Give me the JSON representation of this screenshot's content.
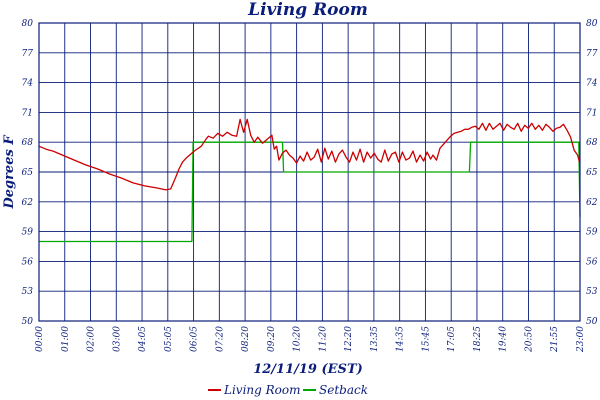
{
  "chart_data": {
    "type": "line",
    "title": "Living Room",
    "xlabel": "12/11/19 (EST)",
    "ylabel": "Degrees F",
    "ylim": [
      50,
      80
    ],
    "yticks": [
      "80",
      "77",
      "74",
      "71",
      "68",
      "65",
      "62",
      "59",
      "56",
      "53",
      "50"
    ],
    "x_tick_labels": [
      "00:00",
      "01:00",
      "02:00",
      "03:00",
      "04:05",
      "05:05",
      "06:05",
      "07:20",
      "08:20",
      "09:20",
      "10:20",
      "11:20",
      "12:20",
      "13:35",
      "14:35",
      "15:45",
      "17:05",
      "18:25",
      "19:40",
      "20:50",
      "21:55",
      "23:00"
    ],
    "grid": true,
    "legend": "bottom",
    "series": [
      {
        "name": "Living Room",
        "color": "#cc0000",
        "x": [
          0,
          0.3,
          0.6,
          1.0,
          1.5,
          2.0,
          2.5,
          3.0,
          3.5,
          4.0,
          4.5,
          5.0,
          5.4,
          5.6,
          5.8,
          5.95,
          6.1,
          6.3,
          6.6,
          6.9,
          7.1,
          7.2,
          7.4,
          7.6,
          7.8,
          8.0,
          8.2,
          8.4,
          8.55,
          8.7,
          8.85,
          9.0,
          9.15,
          9.3,
          9.5,
          9.7,
          9.9,
          10.0,
          10.1,
          10.2,
          10.35,
          10.5,
          10.65,
          10.8,
          10.95,
          11.1,
          11.25,
          11.4,
          11.55,
          11.7,
          11.85,
          12.0,
          12.15,
          12.3,
          12.45,
          12.6,
          12.75,
          12.9,
          13.05,
          13.2,
          13.35,
          13.5,
          13.65,
          13.8,
          13.95,
          14.1,
          14.25,
          14.4,
          14.55,
          14.7,
          14.85,
          15.0,
          15.15,
          15.3,
          15.45,
          15.6,
          15.75,
          15.9,
          16.05,
          16.2,
          16.35,
          16.5,
          16.65,
          16.75,
          16.9,
          17.05,
          17.2,
          17.35,
          17.5,
          17.65,
          17.8,
          17.95,
          18.1,
          18.25,
          18.4,
          18.55,
          18.7,
          18.85,
          19.0,
          19.15,
          19.3,
          19.45,
          19.6,
          19.75,
          19.9,
          20.05,
          20.2,
          20.35,
          20.5,
          20.65,
          20.8,
          20.95,
          21.1,
          21.25,
          21.4,
          21.55,
          21.7,
          21.85,
          22.0,
          22.15,
          22.3,
          22.45,
          22.6,
          22.75,
          22.9,
          23.0
        ],
        "values": [
          67.6,
          67.3,
          67.1,
          66.7,
          66.2,
          65.7,
          65.3,
          64.8,
          64.4,
          63.9,
          63.6,
          63.4,
          63.2,
          63.3,
          64.4,
          65.3,
          66.0,
          66.5,
          67.1,
          67.6,
          68.3,
          68.6,
          68.4,
          68.9,
          68.6,
          69.0,
          68.7,
          68.6,
          70.3,
          69.0,
          70.3,
          68.7,
          68.0,
          68.5,
          67.9,
          68.3,
          68.7,
          67.3,
          67.6,
          66.2,
          66.9,
          67.2,
          66.7,
          66.4,
          65.9,
          66.6,
          66.1,
          67.0,
          66.2,
          66.5,
          67.3,
          66.0,
          67.4,
          66.3,
          67.1,
          66.0,
          66.8,
          67.2,
          66.5,
          66.0,
          67.0,
          66.2,
          67.3,
          66.0,
          67.0,
          66.4,
          66.9,
          66.3,
          66.0,
          67.2,
          66.1,
          66.8,
          67.0,
          66.0,
          67.0,
          66.2,
          66.4,
          67.1,
          66.0,
          66.7,
          66.1,
          67.0,
          66.3,
          66.7,
          66.2,
          67.4,
          67.8,
          68.2,
          68.6,
          68.9,
          69.0,
          69.1,
          69.3,
          69.3,
          69.5,
          69.6,
          69.3,
          69.9,
          69.2,
          69.9,
          69.3,
          69.6,
          69.9,
          69.2,
          69.8,
          69.5,
          69.3,
          69.9,
          69.1,
          69.7,
          69.4,
          69.9,
          69.3,
          69.7,
          69.2,
          69.8,
          69.5,
          69.1,
          69.4,
          69.5,
          69.8,
          69.2,
          68.5,
          67.2,
          66.7,
          65.8
        ]
      },
      {
        "name": "Setback",
        "color": "#00aa00",
        "x": [
          0,
          6.5,
          6.55,
          10.35,
          10.4,
          18.3,
          18.35,
          22.95,
          23.0
        ],
        "values": [
          58.0,
          58.0,
          68.0,
          68.0,
          65.0,
          65.0,
          68.0,
          68.0,
          60.5
        ]
      }
    ]
  }
}
